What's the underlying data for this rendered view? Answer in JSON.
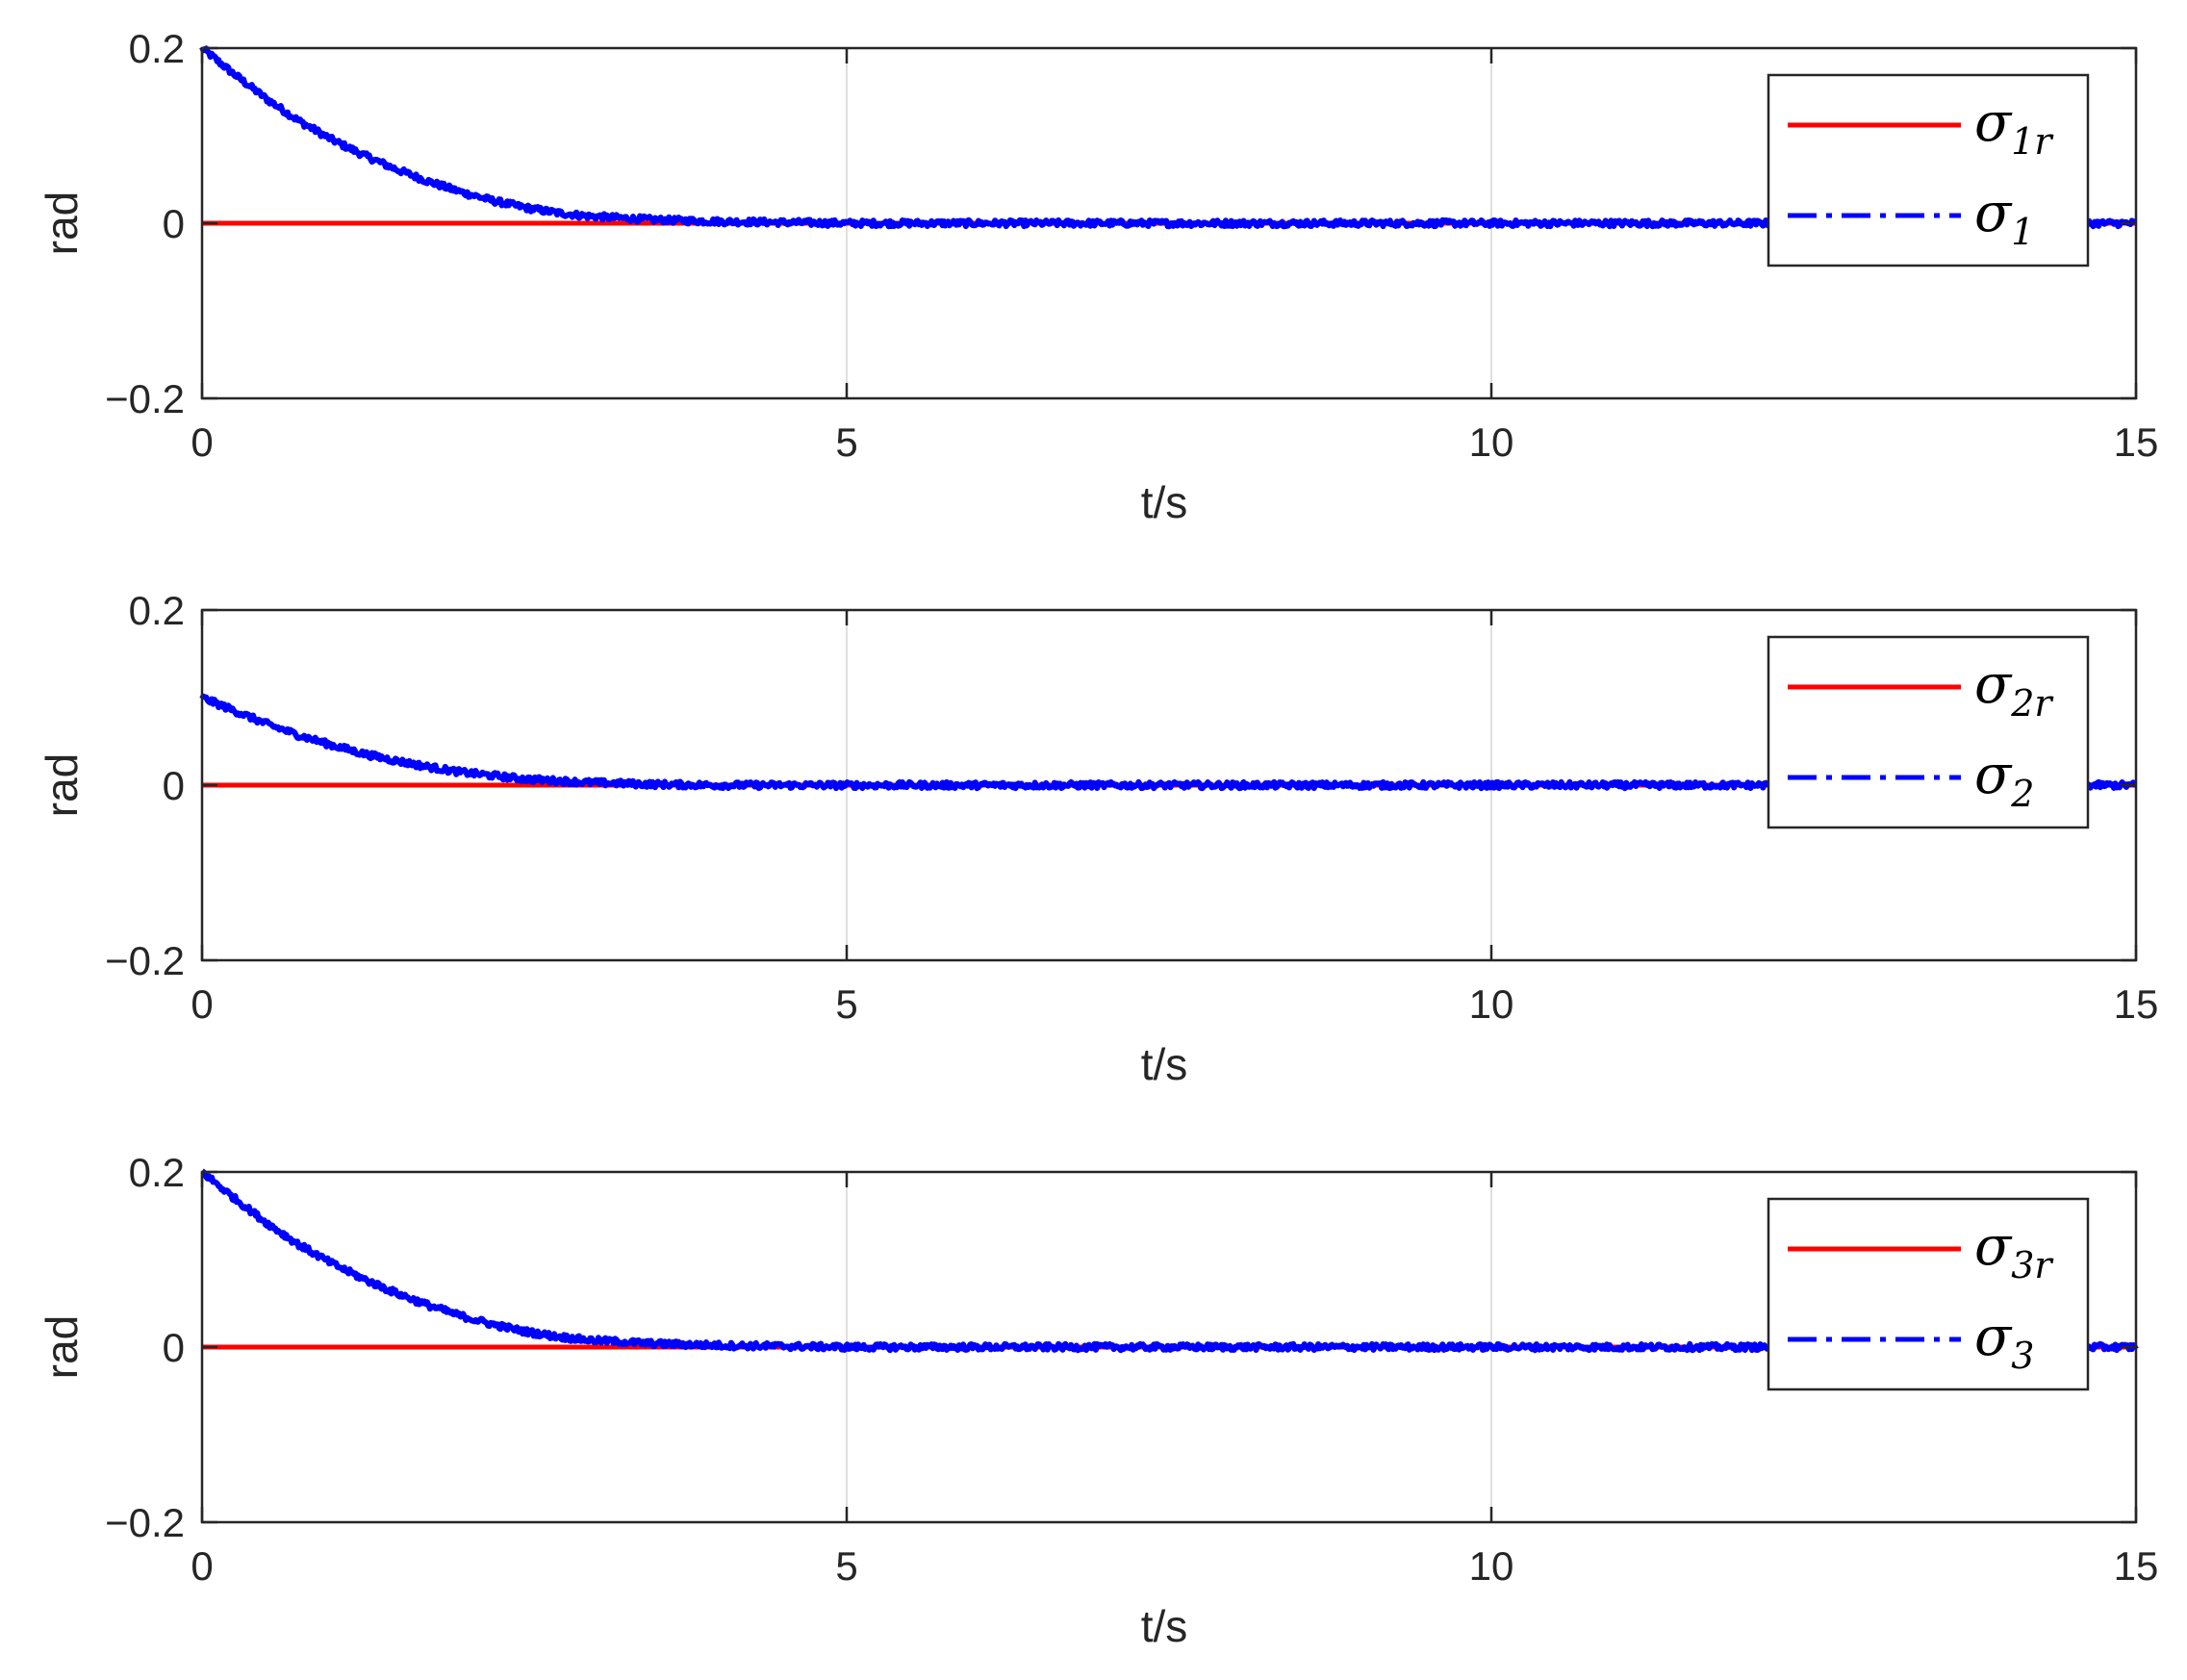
{
  "chart_data": [
    {
      "type": "line",
      "xlabel": "t/s",
      "ylabel": "rad",
      "xlim": [
        0,
        15
      ],
      "ylim": [
        -0.2,
        0.2
      ],
      "xticks": [
        "0",
        "5",
        "10",
        "15"
      ],
      "yticks": [
        "−0.2",
        "0",
        "0.2"
      ],
      "grid": "vertical only",
      "legend_position": "top-right",
      "series": [
        {
          "name": "σ1r",
          "label_symbol": "σ",
          "label_sub": "1",
          "label_sub_it": "r",
          "style": "solid",
          "color": "#ff0000",
          "x": [
            0,
            15
          ],
          "y": [
            0,
            0
          ]
        },
        {
          "name": "σ1",
          "label_symbol": "σ",
          "label_sub": "1",
          "label_sub_it": "",
          "style": "dash-dot",
          "color": "#0000ff",
          "x": [
            0,
            0.25,
            0.5,
            0.75,
            1.0,
            1.25,
            1.5,
            1.75,
            2.0,
            2.25,
            2.5,
            2.75,
            3.0,
            3.5,
            4.0,
            5.0,
            6.0,
            7.0,
            8.0,
            9.0,
            10.0,
            11.0,
            12.0,
            13.0,
            14.0,
            15.0
          ],
          "y": [
            0.2,
            0.17,
            0.142,
            0.117,
            0.096,
            0.078,
            0.062,
            0.048,
            0.036,
            0.026,
            0.018,
            0.012,
            0.008,
            0.004,
            0.002,
            0,
            0,
            0,
            0,
            0,
            0,
            0,
            0,
            0,
            0,
            0
          ]
        }
      ]
    },
    {
      "type": "line",
      "xlabel": "t/s",
      "ylabel": "rad",
      "xlim": [
        0,
        15
      ],
      "ylim": [
        -0.2,
        0.2
      ],
      "xticks": [
        "0",
        "5",
        "10",
        "15"
      ],
      "yticks": [
        "−0.2",
        "0",
        "0.2"
      ],
      "grid": "vertical only",
      "legend_position": "top-right",
      "series": [
        {
          "name": "σ2r",
          "label_symbol": "σ",
          "label_sub": "2",
          "label_sub_it": "r",
          "style": "solid",
          "color": "#ff0000",
          "x": [
            0,
            15
          ],
          "y": [
            0,
            0
          ]
        },
        {
          "name": "σ2",
          "label_symbol": "σ",
          "label_sub": "2",
          "label_sub_it": "",
          "style": "dash-dot",
          "color": "#0000ff",
          "x": [
            0,
            0.25,
            0.5,
            0.75,
            1.0,
            1.25,
            1.5,
            1.75,
            2.0,
            2.25,
            2.5,
            2.75,
            3.0,
            3.5,
            4.0,
            5.0,
            6.0,
            7.0,
            8.0,
            9.0,
            10.0,
            11.0,
            12.0,
            13.0,
            14.0,
            15.0
          ],
          "y": [
            0.1,
            0.085,
            0.07,
            0.057,
            0.046,
            0.036,
            0.028,
            0.021,
            0.015,
            0.011,
            0.007,
            0.005,
            0.003,
            0.001,
            0,
            0,
            0,
            0,
            0,
            0,
            0,
            0,
            0,
            0,
            0,
            0
          ]
        }
      ]
    },
    {
      "type": "line",
      "xlabel": "t/s",
      "ylabel": "rad",
      "xlim": [
        0,
        15
      ],
      "ylim": [
        -0.2,
        0.2
      ],
      "xticks": [
        "0",
        "5",
        "10",
        "15"
      ],
      "yticks": [
        "−0.2",
        "0",
        "0.2"
      ],
      "grid": "vertical only",
      "legend_position": "top-right",
      "series": [
        {
          "name": "σ3r",
          "label_symbol": "σ",
          "label_sub": "3",
          "label_sub_it": "r",
          "style": "solid",
          "color": "#ff0000",
          "x": [
            0,
            15
          ],
          "y": [
            0,
            0
          ]
        },
        {
          "name": "σ3",
          "label_symbol": "σ",
          "label_sub": "3",
          "label_sub_it": "",
          "style": "dash-dot",
          "color": "#0000ff",
          "x": [
            0,
            0.25,
            0.5,
            0.75,
            1.0,
            1.25,
            1.5,
            1.75,
            2.0,
            2.25,
            2.5,
            2.75,
            3.0,
            3.5,
            4.0,
            5.0,
            6.0,
            7.0,
            8.0,
            9.0,
            10.0,
            11.0,
            12.0,
            13.0,
            14.0,
            15.0
          ],
          "y": [
            0.2,
            0.17,
            0.142,
            0.117,
            0.096,
            0.078,
            0.062,
            0.048,
            0.036,
            0.026,
            0.018,
            0.012,
            0.008,
            0.004,
            0.002,
            0,
            0,
            0,
            0,
            0,
            0,
            0,
            0,
            0,
            0,
            0
          ]
        }
      ]
    }
  ]
}
